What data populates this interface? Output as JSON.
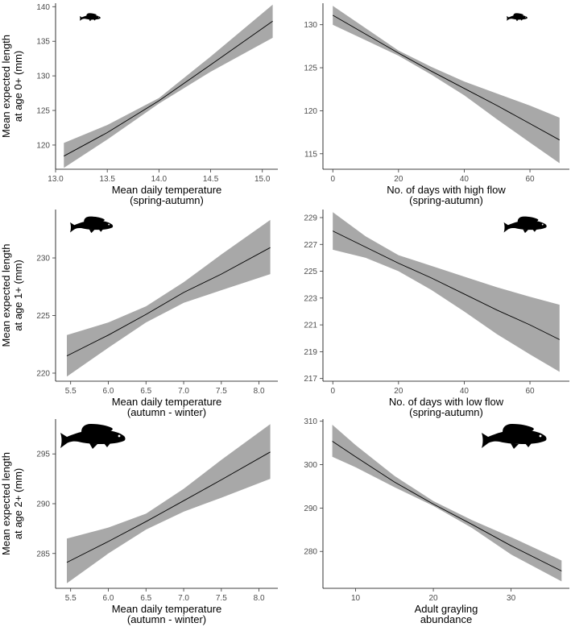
{
  "chart_data": [
    {
      "type": "area",
      "title": "",
      "xlabel": [
        "Mean daily temperature",
        "(spring-autumn)"
      ],
      "ylabel": [
        "Mean expected length",
        "at age 0+ (mm)"
      ],
      "xlim": [
        13.0,
        15.15
      ],
      "ylim": [
        116.5,
        140.5
      ],
      "xticks": [
        13.0,
        13.5,
        14.0,
        14.5,
        15.0
      ],
      "xtick_labels": [
        "13.0",
        "13.5",
        "14.0",
        "14.5",
        "15.0"
      ],
      "yticks": [
        120,
        125,
        130,
        135,
        140
      ],
      "ytick_labels": [
        "120",
        "125",
        "130",
        "135",
        "140"
      ],
      "fish": "small",
      "series": [
        {
          "name": "fit",
          "x": [
            13.08,
            13.5,
            14.0,
            14.5,
            15.1
          ],
          "y": [
            118.4,
            121.8,
            126.4,
            131.6,
            137.9
          ]
        },
        {
          "name": "lower",
          "x": [
            13.08,
            13.5,
            14.0,
            14.5,
            15.1
          ],
          "y": [
            116.7,
            120.8,
            126.0,
            130.6,
            135.5
          ]
        },
        {
          "name": "upper",
          "x": [
            13.08,
            13.5,
            14.0,
            14.5,
            15.1
          ],
          "y": [
            120.3,
            122.9,
            126.8,
            132.8,
            140.3
          ]
        }
      ]
    },
    {
      "type": "area",
      "title": "",
      "xlabel": [
        "No. of days with high flow",
        "(spring-autumn)"
      ],
      "ylabel": [
        "",
        ""
      ],
      "xlim": [
        -3,
        72
      ],
      "ylim": [
        113.2,
        132.5
      ],
      "xticks": [
        0,
        20,
        40,
        60
      ],
      "xtick_labels": [
        "0",
        "20",
        "40",
        "60"
      ],
      "yticks": [
        115,
        120,
        125,
        130
      ],
      "ytick_labels": [
        "115",
        "120",
        "125",
        "130"
      ],
      "fish": "small",
      "series": [
        {
          "name": "fit",
          "x": [
            0,
            10,
            20,
            30,
            40,
            50,
            60,
            69
          ],
          "y": [
            131.1,
            128.9,
            126.7,
            124.6,
            122.6,
            120.6,
            118.5,
            116.6
          ]
        },
        {
          "name": "lower",
          "x": [
            0,
            10,
            20,
            30,
            40,
            50,
            60,
            69
          ],
          "y": [
            130.0,
            128.2,
            126.4,
            124.2,
            121.8,
            119.0,
            116.3,
            113.9
          ]
        },
        {
          "name": "upper",
          "x": [
            0,
            10,
            20,
            30,
            40,
            50,
            60,
            69
          ],
          "y": [
            132.2,
            129.6,
            127.0,
            125.1,
            123.4,
            122.0,
            120.6,
            119.2
          ]
        }
      ]
    },
    {
      "type": "area",
      "title": "",
      "xlabel": [
        "Mean daily temperature",
        "(autumn - winter)"
      ],
      "ylabel": [
        "Mean expected length",
        "at age 1+ (mm)"
      ],
      "xlim": [
        5.3,
        8.25
      ],
      "ylim": [
        219.3,
        234.2
      ],
      "xticks": [
        5.5,
        6.0,
        6.5,
        7.0,
        7.5,
        8.0
      ],
      "xtick_labels": [
        "5.5",
        "6.0",
        "6.5",
        "7.0",
        "7.5",
        "8.0"
      ],
      "yticks": [
        220,
        225,
        230
      ],
      "ytick_labels": [
        "220",
        "225",
        "230"
      ],
      "fish": "medium",
      "series": [
        {
          "name": "fit",
          "x": [
            5.45,
            6.0,
            6.5,
            7.0,
            7.5,
            8.15
          ],
          "y": [
            221.5,
            223.3,
            225.1,
            227.0,
            228.6,
            230.9
          ]
        },
        {
          "name": "lower",
          "x": [
            5.45,
            6.0,
            6.5,
            7.0,
            7.5,
            8.15
          ],
          "y": [
            219.7,
            222.2,
            224.4,
            226.1,
            227.2,
            228.6
          ]
        },
        {
          "name": "upper",
          "x": [
            5.45,
            6.0,
            6.5,
            7.0,
            7.5,
            8.15
          ],
          "y": [
            223.3,
            224.4,
            225.8,
            227.9,
            230.3,
            233.3
          ]
        }
      ]
    },
    {
      "type": "area",
      "title": "",
      "xlabel": [
        "No. of days with low flow",
        "(spring-autumn)"
      ],
      "ylabel": [
        "",
        ""
      ],
      "xlim": [
        -3,
        72
      ],
      "ylim": [
        216.8,
        229.6
      ],
      "xticks": [
        0,
        20,
        40,
        60
      ],
      "xtick_labels": [
        "0",
        "20",
        "40",
        "60"
      ],
      "yticks": [
        217,
        219,
        221,
        223,
        225,
        227,
        229
      ],
      "ytick_labels": [
        "217",
        "219",
        "221",
        "223",
        "225",
        "227",
        "229"
      ],
      "fish": "medium",
      "series": [
        {
          "name": "fit",
          "x": [
            0,
            10,
            20,
            30,
            40,
            50,
            60,
            69
          ],
          "y": [
            228.0,
            226.8,
            225.6,
            224.5,
            223.3,
            222.1,
            221.0,
            219.9
          ]
        },
        {
          "name": "lower",
          "x": [
            0,
            10,
            20,
            30,
            40,
            50,
            60,
            69
          ],
          "y": [
            226.6,
            226.0,
            225.0,
            223.6,
            222.0,
            220.3,
            218.8,
            217.5
          ]
        },
        {
          "name": "upper",
          "x": [
            0,
            10,
            20,
            30,
            40,
            50,
            60,
            69
          ],
          "y": [
            229.4,
            227.6,
            226.2,
            225.4,
            224.6,
            223.8,
            223.1,
            222.5
          ]
        }
      ]
    },
    {
      "type": "area",
      "title": "",
      "xlabel": [
        "Mean daily temperature",
        "(autumn - winter)"
      ],
      "ylabel": [
        "Mean expected length",
        "at age 2+ (mm)"
      ],
      "xlim": [
        5.3,
        8.25
      ],
      "ylim": [
        281.5,
        298.5
      ],
      "xticks": [
        5.5,
        6.0,
        6.5,
        7.0,
        7.5,
        8.0
      ],
      "xtick_labels": [
        "5.5",
        "6.0",
        "6.5",
        "7.0",
        "7.5",
        "8.0"
      ],
      "yticks": [
        285,
        290,
        295
      ],
      "ytick_labels": [
        "285",
        "290",
        "295"
      ],
      "fish": "large",
      "series": [
        {
          "name": "fit",
          "x": [
            5.45,
            6.0,
            6.5,
            7.0,
            7.5,
            8.15
          ],
          "y": [
            284.1,
            286.2,
            288.2,
            290.3,
            292.4,
            295.2
          ]
        },
        {
          "name": "lower",
          "x": [
            5.45,
            6.0,
            6.5,
            7.0,
            7.5,
            8.15
          ],
          "y": [
            282.0,
            285.0,
            287.4,
            289.2,
            290.6,
            292.5
          ]
        },
        {
          "name": "upper",
          "x": [
            5.45,
            6.0,
            6.5,
            7.0,
            7.5,
            8.15
          ],
          "y": [
            286.5,
            287.6,
            289.0,
            291.5,
            294.4,
            298.0
          ]
        }
      ]
    },
    {
      "type": "area",
      "title": "",
      "xlabel": [
        "Adult grayling",
        "abundance"
      ],
      "ylabel": [
        "",
        ""
      ],
      "xlim": [
        5.8,
        37.5
      ],
      "ylim": [
        271.5,
        310.5
      ],
      "xticks": [
        10,
        20,
        30
      ],
      "xtick_labels": [
        "10",
        "20",
        "30"
      ],
      "yticks": [
        280,
        290,
        300,
        310
      ],
      "ytick_labels": [
        "280",
        "290",
        "300",
        "310"
      ],
      "fish": "large",
      "series": [
        {
          "name": "fit",
          "x": [
            7,
            10,
            15,
            20,
            25,
            30,
            36.5
          ],
          "y": [
            305.4,
            301.8,
            296.0,
            290.9,
            286.2,
            281.3,
            275.5
          ]
        },
        {
          "name": "lower",
          "x": [
            7,
            10,
            15,
            20,
            25,
            30,
            36.5
          ],
          "y": [
            301.8,
            299.4,
            294.8,
            290.5,
            285.4,
            279.3,
            273.1
          ]
        },
        {
          "name": "upper",
          "x": [
            7,
            10,
            15,
            20,
            25,
            30,
            36.5
          ],
          "y": [
            309.2,
            304.5,
            297.4,
            291.6,
            287.2,
            283.3,
            277.9
          ]
        }
      ]
    }
  ]
}
